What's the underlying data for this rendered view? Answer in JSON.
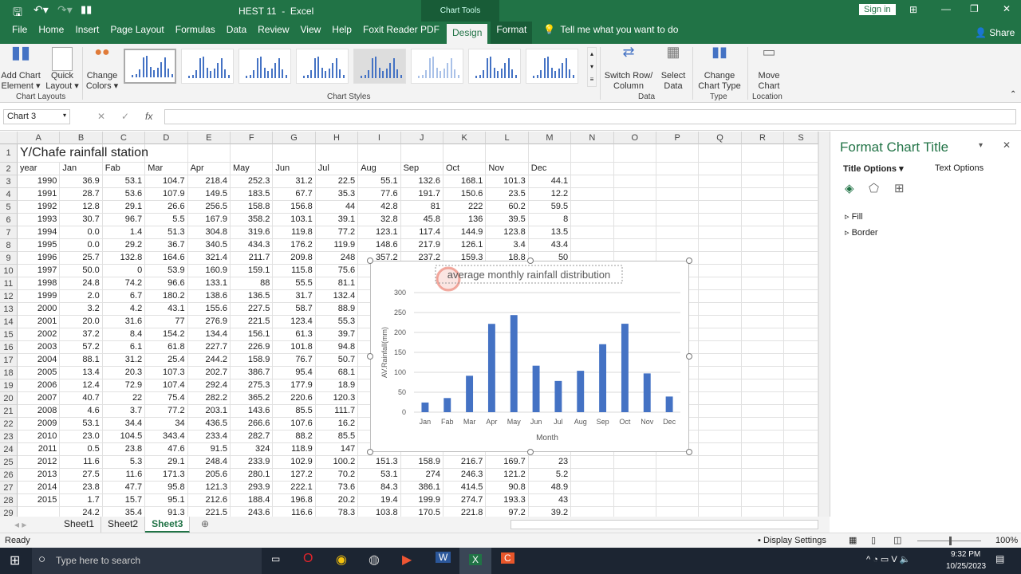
{
  "titlebar": {
    "doc_title": "HEST 11  -  Excel",
    "context": "Chart Tools",
    "sign_in": "Sign in"
  },
  "tabs": [
    "File",
    "Home",
    "Insert",
    "Page Layout",
    "Formulas",
    "Data",
    "Review",
    "View",
    "Help",
    "Foxit Reader PDF",
    "Design",
    "Format"
  ],
  "active_tab": "Design",
  "tell_me": "Tell me what you want to do",
  "share": "Share",
  "ribbon": {
    "add_chart_element": [
      "Add Chart",
      "Element ▾"
    ],
    "quick_layout": [
      "Quick",
      "Layout ▾"
    ],
    "change_colors": [
      "Change",
      "Colors ▾"
    ],
    "group_chart_layouts": "Chart Layouts",
    "group_chart_styles": "Chart Styles",
    "switch_row_col": [
      "Switch Row/",
      "Column"
    ],
    "select_data": [
      "Select",
      "Data"
    ],
    "group_data": "Data",
    "change_chart_type": [
      "Change",
      "Chart Type"
    ],
    "group_type": "Type",
    "move_chart": [
      "Move",
      "Chart"
    ],
    "group_location": "Location"
  },
  "formula_bar": {
    "name_box": "Chart 3",
    "fx": "fx",
    "value": ""
  },
  "columns": [
    "A",
    "B",
    "C",
    "D",
    "E",
    "F",
    "G",
    "H",
    "I",
    "J",
    "K",
    "L",
    "M",
    "N",
    "O",
    "P",
    "Q",
    "R",
    "S"
  ],
  "sheet": {
    "title": "Y/Chafe rainfall station",
    "headers": [
      "year",
      "Jan",
      "Fab",
      "Mar",
      "Apr",
      "May",
      "Jun",
      "Jul",
      "Aug",
      "Sep",
      "Oct",
      "Nov",
      "Dec"
    ],
    "rows": [
      [
        "1990",
        "36.9",
        "53.1",
        "104.7",
        "218.4",
        "252.3",
        "31.2",
        "22.5",
        "55.1",
        "132.6",
        "168.1",
        "101.3",
        "44.1"
      ],
      [
        "1991",
        "28.7",
        "53.6",
        "107.9",
        "149.5",
        "183.5",
        "67.7",
        "35.3",
        "77.6",
        "191.7",
        "150.6",
        "23.5",
        "12.2"
      ],
      [
        "1992",
        "12.8",
        "29.1",
        "26.6",
        "256.5",
        "158.8",
        "156.8",
        "44",
        "42.8",
        "81",
        "222",
        "60.2",
        "59.5"
      ],
      [
        "1993",
        "30.7",
        "96.7",
        "5.5",
        "167.9",
        "358.2",
        "103.1",
        "39.1",
        "32.8",
        "45.8",
        "136",
        "39.5",
        "8"
      ],
      [
        "1994",
        "0.0",
        "1.4",
        "51.3",
        "304.8",
        "319.6",
        "119.8",
        "77.2",
        "123.1",
        "117.4",
        "144.9",
        "123.8",
        "13.5"
      ],
      [
        "1995",
        "0.0",
        "29.2",
        "36.7",
        "340.5",
        "434.3",
        "176.2",
        "119.9",
        "148.6",
        "217.9",
        "126.1",
        "3.4",
        "43.4"
      ],
      [
        "1996",
        "25.7",
        "132.8",
        "164.6",
        "321.4",
        "211.7",
        "209.8",
        "248",
        "357.2",
        "237.2",
        "159.3",
        "18.8",
        "50"
      ],
      [
        "1997",
        "50.0",
        "0",
        "53.9",
        "160.9",
        "159.1",
        "115.8",
        "75.6"
      ],
      [
        "1998",
        "24.8",
        "74.2",
        "96.6",
        "133.1",
        "88",
        "55.5",
        "81.1"
      ],
      [
        "1999",
        "2.0",
        "6.7",
        "180.2",
        "138.6",
        "136.5",
        "31.7",
        "132.4"
      ],
      [
        "2000",
        "3.2",
        "4.2",
        "43.1",
        "155.6",
        "227.5",
        "58.7",
        "88.9"
      ],
      [
        "2001",
        "20.0",
        "31.6",
        "77",
        "276.9",
        "221.5",
        "123.4",
        "55.3"
      ],
      [
        "2002",
        "37.2",
        "8.4",
        "154.2",
        "134.4",
        "156.1",
        "61.3",
        "39.7"
      ],
      [
        "2003",
        "57.2",
        "6.1",
        "61.8",
        "227.7",
        "226.9",
        "101.8",
        "94.8"
      ],
      [
        "2004",
        "88.1",
        "31.2",
        "25.4",
        "244.2",
        "158.9",
        "76.7",
        "50.7"
      ],
      [
        "2005",
        "13.4",
        "20.3",
        "107.3",
        "202.7",
        "386.7",
        "95.4",
        "68.1"
      ],
      [
        "2006",
        "12.4",
        "72.9",
        "107.4",
        "292.4",
        "275.3",
        "177.9",
        "18.9"
      ],
      [
        "2007",
        "40.7",
        "22",
        "75.4",
        "282.2",
        "365.2",
        "220.6",
        "120.3"
      ],
      [
        "2008",
        "4.6",
        "3.7",
        "77.2",
        "203.1",
        "143.6",
        "85.5",
        "111.7"
      ],
      [
        "2009",
        "53.1",
        "34.4",
        "34",
        "436.5",
        "266.6",
        "107.6",
        "16.2"
      ],
      [
        "2010",
        "23.0",
        "104.5",
        "343.4",
        "233.4",
        "282.7",
        "88.2",
        "85.5"
      ],
      [
        "2011",
        "0.5",
        "23.8",
        "47.6",
        "91.5",
        "324",
        "118.9",
        "147"
      ],
      [
        "2012",
        "11.6",
        "5.3",
        "29.1",
        "248.4",
        "233.9",
        "102.9",
        "100.2",
        "151.3",
        "158.9",
        "216.7",
        "169.7",
        "23"
      ],
      [
        "2013",
        "27.5",
        "11.6",
        "171.3",
        "205.6",
        "280.1",
        "127.2",
        "70.2",
        "53.1",
        "274",
        "246.3",
        "121.2",
        "5.2"
      ],
      [
        "2014",
        "23.8",
        "47.7",
        "95.8",
        "121.3",
        "293.9",
        "222.1",
        "73.6",
        "84.3",
        "386.1",
        "414.5",
        "90.8",
        "48.9"
      ],
      [
        "2015",
        "1.7",
        "15.7",
        "95.1",
        "212.6",
        "188.4",
        "196.8",
        "20.2",
        "19.4",
        "199.9",
        "274.7",
        "193.3",
        "43"
      ],
      [
        "",
        "24.2",
        "35.4",
        "91.3",
        "221.5",
        "243.6",
        "116.6",
        "78.3",
        "103.8",
        "170.5",
        "221.8",
        "97.2",
        "39.2"
      ]
    ]
  },
  "chart_data": {
    "type": "bar",
    "title": "average monthly rainfall distribution",
    "xlabel": "Month",
    "ylabel": "AV.Rainfall(mm)",
    "categories": [
      "Jan",
      "Fab",
      "Mar",
      "Apr",
      "May",
      "Jun",
      "Jul",
      "Aug",
      "Sep",
      "Oct",
      "Nov",
      "Dec"
    ],
    "values": [
      24.2,
      35.4,
      91.3,
      221.5,
      243.6,
      116.6,
      78.3,
      103.8,
      170.5,
      221.8,
      97.2,
      39.2
    ],
    "ylim": [
      0,
      300
    ],
    "yticks": [
      "0",
      "50",
      "100",
      "150",
      "200",
      "250",
      "300"
    ],
    "grid": true,
    "color": "#4472c4"
  },
  "pane": {
    "title": "Format Chart Title",
    "tab1": "Title Options",
    "tab2": "Text Options",
    "fill": "Fill",
    "border": "Border"
  },
  "sheet_tabs": [
    "Sheet1",
    "Sheet2",
    "Sheet3"
  ],
  "active_sheet": "Sheet3",
  "status": {
    "ready": "Ready",
    "display_settings": "Display Settings",
    "zoom": "100%"
  },
  "taskbar": {
    "search": "Type here to search",
    "time": "9:32 PM",
    "date": "10/25/2023"
  },
  "colors": {
    "excel_green": "#217346",
    "accent": "#4472c4"
  }
}
